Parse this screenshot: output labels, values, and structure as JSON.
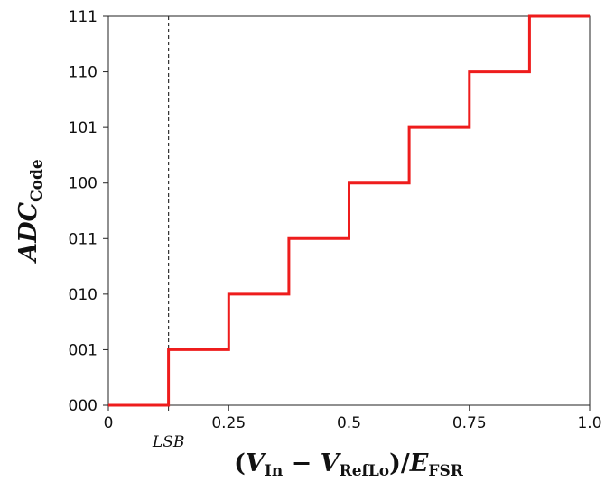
{
  "chart_data": {
    "type": "line",
    "style": "step",
    "title": "",
    "xlabel": {
      "open": "(",
      "v1": "V",
      "v1_sub": "In",
      "minus": " − ",
      "v2": "V",
      "v2_sub": "RefLo",
      "close_div": ")/",
      "e": "E",
      "e_sub": "FSR"
    },
    "ylabel": {
      "main": "ADC",
      "sub": "Code"
    },
    "xlim": [
      0,
      1.0
    ],
    "ylim": [
      0,
      7
    ],
    "xticks": [
      {
        "value": 0,
        "label": "0"
      },
      {
        "value": 0.25,
        "label": "0.25"
      },
      {
        "value": 0.5,
        "label": "0.5"
      },
      {
        "value": 0.75,
        "label": "0.75"
      },
      {
        "value": 1.0,
        "label": "1.0"
      }
    ],
    "yticks": [
      {
        "value": 0,
        "label": "000"
      },
      {
        "value": 1,
        "label": "001"
      },
      {
        "value": 2,
        "label": "010"
      },
      {
        "value": 3,
        "label": "011"
      },
      {
        "value": 4,
        "label": "100"
      },
      {
        "value": 5,
        "label": "101"
      },
      {
        "value": 6,
        "label": "110"
      },
      {
        "value": 7,
        "label": "111"
      }
    ],
    "series": [
      {
        "color": "#ee1c1c",
        "x": [
          0,
          0.125,
          0.125,
          0.25,
          0.25,
          0.375,
          0.375,
          0.5,
          0.5,
          0.625,
          0.625,
          0.75,
          0.75,
          0.875,
          0.875,
          1.0
        ],
        "y": [
          0,
          0,
          1,
          1,
          2,
          2,
          3,
          3,
          4,
          4,
          5,
          5,
          6,
          6,
          7,
          7
        ]
      }
    ],
    "annotations": [
      {
        "type": "vline",
        "x": 0.125,
        "style": "dashed",
        "color": "#333333",
        "label": "LSB"
      }
    ],
    "grid": false,
    "legend": "none"
  }
}
